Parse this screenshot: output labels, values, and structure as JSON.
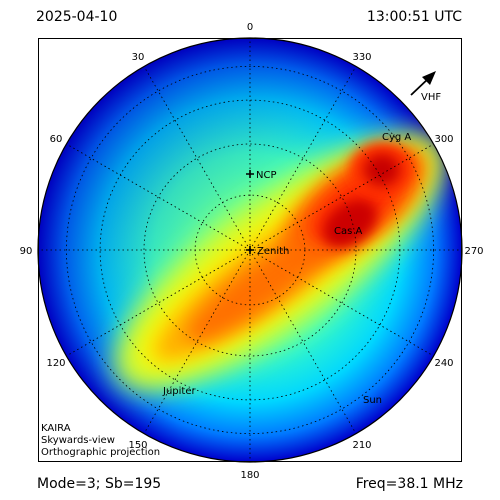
{
  "header": {
    "date": "2025-04-10",
    "time": "13:00:51 UTC"
  },
  "footer": {
    "mode": "Mode=3; Sb=195",
    "frequency": "Freq=38.1 MHz"
  },
  "info_lines": [
    "KAIRA",
    "Skywards-view",
    "Orthographic projection"
  ],
  "azimuth_labels": [
    "0",
    "30",
    "60",
    "90",
    "120",
    "150",
    "180",
    "210",
    "240",
    "270",
    "300",
    "330"
  ],
  "sources": [
    {
      "name": "NCP",
      "marker": true
    },
    {
      "name": "Zenith",
      "marker": true
    },
    {
      "name": "Cyg A",
      "marker": false
    },
    {
      "name": "Cas A",
      "marker": false
    },
    {
      "name": "Jupiter",
      "marker": false
    },
    {
      "name": "Sun",
      "marker": false
    }
  ],
  "direction_arrow": {
    "label": "VHF",
    "icon": "arrow-icon"
  },
  "colormap": "jet",
  "colors": {
    "frame": "#000000",
    "grid": "#000000",
    "text": "#000000"
  }
}
